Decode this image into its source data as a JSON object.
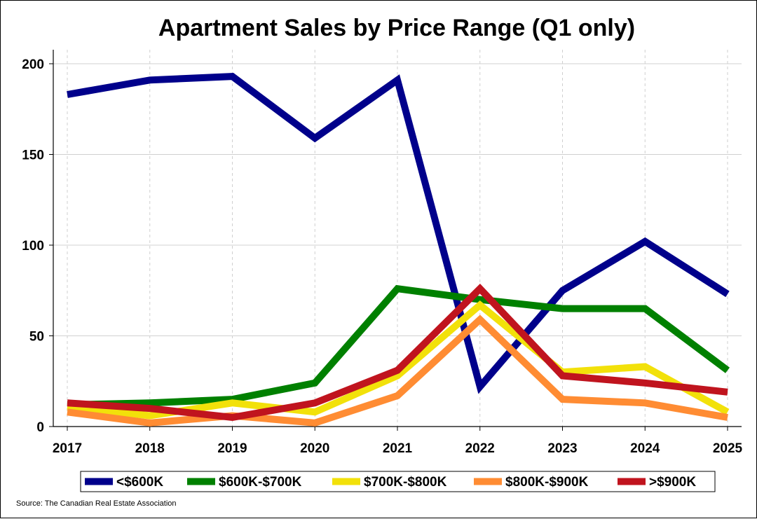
{
  "chart_data": {
    "type": "line",
    "title": "Apartment Sales by Price Range (Q1 only)",
    "xlabel": "",
    "ylabel": "",
    "categories": [
      "2017",
      "2018",
      "2019",
      "2020",
      "2021",
      "2022",
      "2023",
      "2024",
      "2025"
    ],
    "ylim": [
      0,
      200
    ],
    "yticks": [
      "0",
      "50",
      "100",
      "150",
      "200"
    ],
    "grid": true,
    "legend_position": "bottom",
    "series": [
      {
        "name": "<$600K",
        "color": "#00008B",
        "values": [
          183,
          191,
          193,
          159,
          191,
          22,
          75,
          102,
          73
        ]
      },
      {
        "name": "$600K-$700K",
        "color": "#008000",
        "values": [
          12,
          13,
          15,
          24,
          76,
          70,
          65,
          65,
          31
        ]
      },
      {
        "name": "$700K-$800K",
        "color": "#F2E10A",
        "values": [
          11,
          6,
          13,
          8,
          28,
          67,
          30,
          33,
          8
        ]
      },
      {
        "name": "$800K-$900K",
        "color": "#FF8C33",
        "values": [
          8,
          2,
          6,
          2,
          17,
          59,
          15,
          13,
          5
        ]
      },
      {
        "name": ">$900K",
        "color": "#C0141E",
        "values": [
          13,
          10,
          5,
          13,
          31,
          76,
          28,
          24,
          19
        ]
      }
    ],
    "source": "Source: The Canadian Real Estate Association"
  }
}
